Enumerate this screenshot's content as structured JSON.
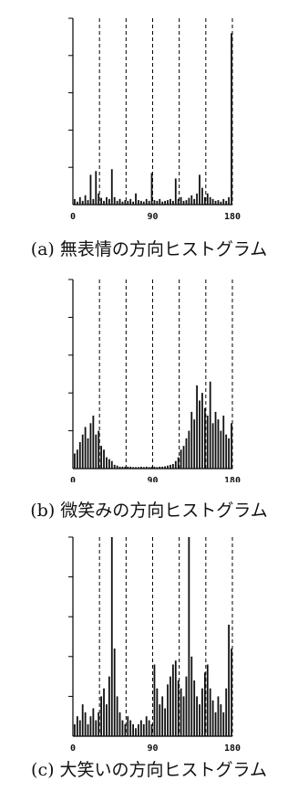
{
  "chart_data": [
    {
      "type": "bar",
      "caption": "(a) 無表情の方向ヒストグラム",
      "x_ticks": [
        "0",
        "90",
        "180"
      ],
      "xlim": [
        0,
        180
      ],
      "ylim": [
        0,
        5
      ],
      "dashed_lines_x": [
        30,
        60,
        90,
        120,
        150,
        180
      ],
      "x": [
        2,
        5,
        8,
        11,
        14,
        17,
        20,
        23,
        26,
        29,
        32,
        35,
        38,
        41,
        44,
        47,
        50,
        53,
        56,
        59,
        62,
        65,
        68,
        71,
        74,
        77,
        80,
        83,
        86,
        89,
        92,
        95,
        98,
        101,
        104,
        107,
        110,
        113,
        116,
        119,
        122,
        125,
        128,
        131,
        134,
        137,
        140,
        143,
        146,
        149,
        152,
        155,
        158,
        161,
        164,
        167,
        170,
        173,
        176,
        179
      ],
      "values": [
        0.15,
        0.08,
        0.2,
        0.1,
        0.25,
        0.12,
        0.8,
        0.15,
        0.9,
        0.3,
        0.18,
        0.1,
        0.2,
        0.15,
        0.95,
        0.2,
        0.1,
        0.15,
        0.08,
        0.12,
        0.1,
        0.15,
        0.08,
        0.3,
        0.12,
        0.1,
        0.08,
        0.15,
        0.1,
        0.85,
        0.12,
        0.1,
        0.15,
        0.08,
        0.1,
        0.12,
        0.15,
        0.1,
        0.7,
        0.15,
        0.2,
        0.1,
        0.12,
        0.18,
        0.25,
        0.15,
        0.3,
        0.8,
        0.45,
        0.2,
        0.3,
        0.2,
        0.15,
        0.1,
        0.12,
        0.08,
        0.15,
        0.1,
        0.2,
        4.6
      ]
    },
    {
      "type": "bar",
      "caption": "(b) 微笑みの方向ヒストグラム",
      "x_ticks": [
        "0",
        "90",
        "180"
      ],
      "xlim": [
        0,
        180
      ],
      "ylim": [
        0,
        5
      ],
      "dashed_lines_x": [
        30,
        60,
        90,
        120,
        150,
        180
      ],
      "x": [
        2,
        5,
        8,
        11,
        14,
        17,
        20,
        23,
        26,
        29,
        32,
        35,
        38,
        41,
        44,
        47,
        50,
        53,
        56,
        59,
        62,
        65,
        68,
        71,
        74,
        77,
        80,
        83,
        86,
        89,
        92,
        95,
        98,
        101,
        104,
        107,
        110,
        113,
        116,
        119,
        122,
        125,
        128,
        131,
        134,
        137,
        140,
        143,
        146,
        149,
        152,
        155,
        158,
        161,
        164,
        167,
        170,
        173,
        176,
        179
      ],
      "values": [
        0.4,
        0.5,
        0.7,
        0.9,
        1.1,
        0.8,
        1.2,
        1.4,
        0.9,
        1.0,
        0.6,
        0.5,
        0.3,
        0.25,
        0.2,
        0.1,
        0.08,
        0.05,
        0.05,
        0.05,
        0.05,
        0.05,
        0.04,
        0.04,
        0.04,
        0.05,
        0.04,
        0.05,
        0.04,
        0.05,
        0.05,
        0.04,
        0.05,
        0.05,
        0.06,
        0.08,
        0.1,
        0.12,
        0.2,
        0.3,
        0.5,
        0.6,
        0.8,
        1.0,
        1.5,
        1.3,
        2.2,
        1.8,
        2.0,
        1.6,
        1.4,
        2.3,
        1.2,
        1.5,
        1.3,
        1.0,
        1.4,
        0.9,
        0.8,
        1.2
      ]
    },
    {
      "type": "bar",
      "caption": "(c) 大笑いの方向ヒストグラム",
      "x_ticks": [
        "0",
        "90",
        "180"
      ],
      "xlim": [
        0,
        180
      ],
      "ylim": [
        0,
        5
      ],
      "dashed_lines_x": [
        30,
        60,
        90,
        120,
        150,
        180
      ],
      "x": [
        2,
        5,
        8,
        11,
        14,
        17,
        20,
        23,
        26,
        29,
        32,
        35,
        38,
        41,
        44,
        47,
        50,
        53,
        56,
        59,
        62,
        65,
        68,
        71,
        74,
        77,
        80,
        83,
        86,
        89,
        92,
        95,
        98,
        101,
        104,
        107,
        110,
        113,
        116,
        119,
        122,
        125,
        128,
        131,
        134,
        137,
        140,
        143,
        146,
        149,
        152,
        155,
        158,
        161,
        164,
        167,
        170,
        173,
        176,
        179
      ],
      "values": [
        0.3,
        0.5,
        0.4,
        0.8,
        0.6,
        0.3,
        0.5,
        0.7,
        0.4,
        0.6,
        1.0,
        1.2,
        0.8,
        1.5,
        5.0,
        2.2,
        1.0,
        0.6,
        0.4,
        0.3,
        0.5,
        0.4,
        0.3,
        0.2,
        0.3,
        0.4,
        0.3,
        0.5,
        0.4,
        0.3,
        1.8,
        1.2,
        0.8,
        1.0,
        0.7,
        1.3,
        1.5,
        1.8,
        1.9,
        1.4,
        1.2,
        1.0,
        1.5,
        5.0,
        2.0,
        1.4,
        1.0,
        0.8,
        1.2,
        1.6,
        1.8,
        1.2,
        0.9,
        0.6,
        1.0,
        0.8,
        0.6,
        1.2,
        2.8,
        2.2
      ]
    }
  ]
}
